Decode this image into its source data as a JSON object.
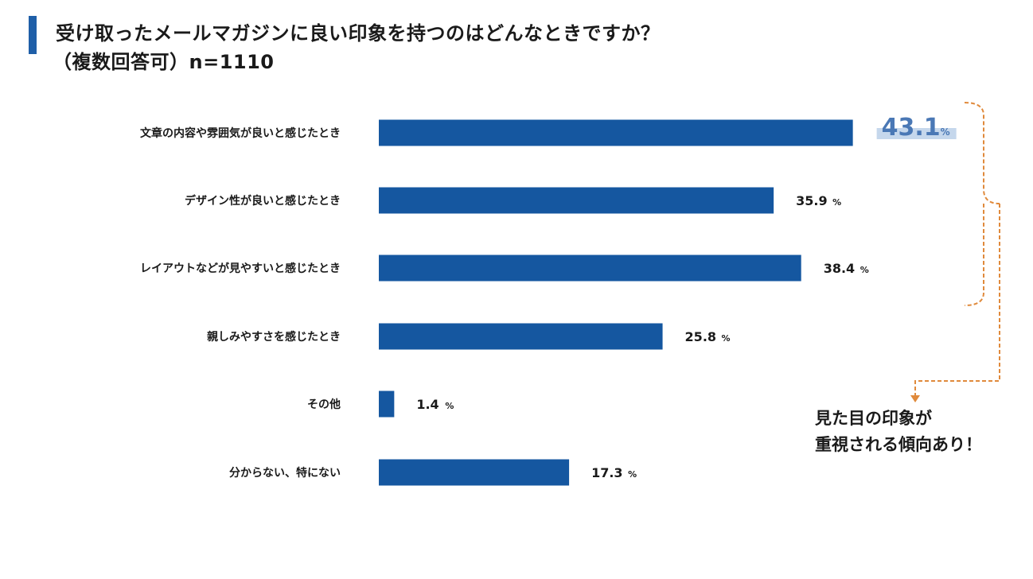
{
  "title": {
    "line1": "受け取ったメールマガジンに良い印象を持つのはどんなときですか？",
    "line2": "（複数回答可）n=1110"
  },
  "chart_data": {
    "type": "bar",
    "orientation": "horizontal",
    "categories": [
      "文章の内容や雰囲気が良いと感じたとき",
      "デザイン性が良いと感じたとき",
      "レイアウトなどが見やすいと感じたとき",
      "親しみやすさを感じたとき",
      "その他",
      "分からない、特にない"
    ],
    "values": [
      43.1,
      35.9,
      38.4,
      25.8,
      1.4,
      17.3
    ],
    "value_labels": [
      "43.1",
      "35.9",
      "38.4",
      "25.8",
      "1.4",
      "17.3"
    ],
    "unit": "%",
    "bar_color": "#1557a0",
    "highlight_index": 0,
    "highlight_color": "#4a78b5",
    "highlight_bg": "#c5d7ec",
    "grid": false
  },
  "callout": {
    "line1": "見た目の印象が",
    "line2": "重視される傾向あり！",
    "connector_color": "#e08a3c"
  }
}
